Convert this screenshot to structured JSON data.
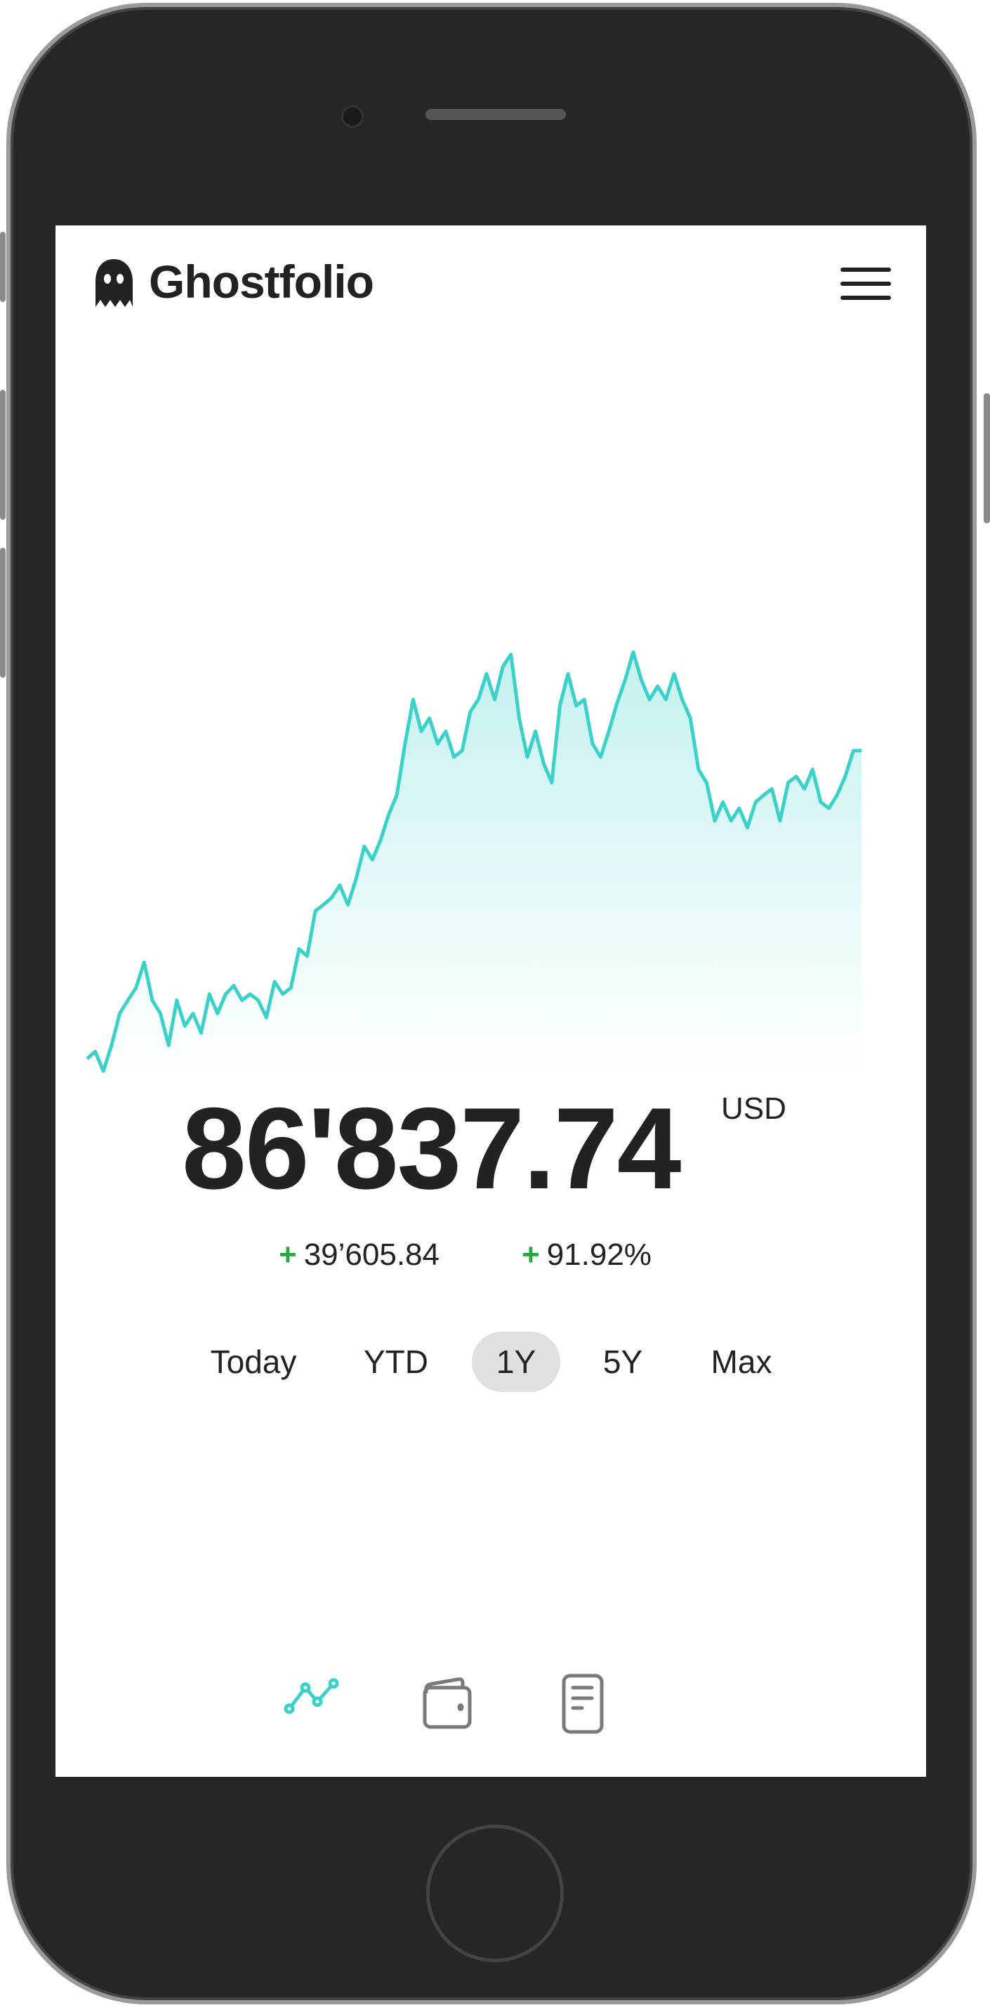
{
  "app": {
    "title": "Ghostfolio",
    "logo_icon": "ghost-icon",
    "menu_icon": "hamburger-menu-icon"
  },
  "portfolio": {
    "value": "86'837.74",
    "currency": "USD",
    "change_absolute": "39’605.84",
    "change_percent": "91.92%",
    "change_sign": "+",
    "positive_color": "#28a745"
  },
  "ranges": {
    "items": [
      {
        "label": "Today"
      },
      {
        "label": "YTD"
      },
      {
        "label": "1Y"
      },
      {
        "label": "5Y"
      },
      {
        "label": "Max"
      }
    ],
    "selected": "1Y"
  },
  "bottom_nav": {
    "items": [
      {
        "icon": "line-chart-icon",
        "active": true
      },
      {
        "icon": "wallet-icon",
        "active": false
      },
      {
        "icon": "document-icon",
        "active": false
      }
    ],
    "active_color": "#3bd1cb",
    "inactive_color": "#7a7a7a"
  },
  "chart_data": {
    "type": "area",
    "line_color": "#3bd1cb",
    "grid": false,
    "axes_visible": false,
    "values": [
      47200,
      48100,
      45600,
      48900,
      53000,
      54700,
      56300,
      59600,
      54700,
      53000,
      48900,
      54700,
      51400,
      53000,
      50500,
      55500,
      53000,
      55500,
      56600,
      54700,
      55500,
      54700,
      52500,
      57100,
      55500,
      56300,
      61300,
      60400,
      66200,
      67000,
      67900,
      69500,
      67000,
      70300,
      74500,
      72800,
      75300,
      78600,
      81100,
      87700,
      93400,
      89300,
      91000,
      87700,
      89300,
      86000,
      86800,
      91800,
      93400,
      96700,
      93400,
      97600,
      99200,
      91000,
      86000,
      89300,
      85200,
      82700,
      92600,
      96700,
      92600,
      93400,
      87700,
      86000,
      89300,
      92900,
      95900,
      99500,
      95900,
      93400,
      95100,
      93400,
      96700,
      93400,
      91000,
      84400,
      82700,
      77800,
      80200,
      77800,
      79400,
      76900,
      80200,
      81100,
      81900,
      77800,
      82700,
      83500,
      81900,
      84400,
      80200,
      79400,
      81100,
      83500,
      86800,
      86838
    ]
  }
}
